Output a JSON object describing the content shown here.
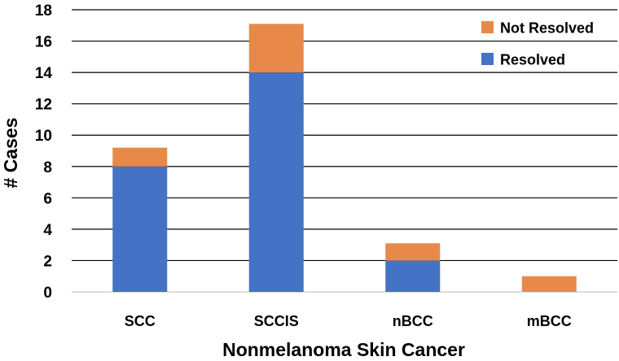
{
  "chart_data": {
    "type": "bar",
    "stacked": true,
    "title": "",
    "xlabel": "Nonmelanoma Skin Cancer",
    "ylabel": "# Cases",
    "ylim": [
      0,
      18
    ],
    "yticks": [
      0,
      2,
      4,
      6,
      8,
      10,
      12,
      14,
      16,
      18
    ],
    "grid": true,
    "legend_position": "top-right",
    "categories": [
      "SCC",
      "SCCIS",
      "nBCC",
      "mBCC"
    ],
    "series": [
      {
        "name": "Resolved",
        "color": "#4472C4",
        "values": [
          8,
          14,
          2,
          0
        ]
      },
      {
        "name": "Not Resolved",
        "color": "#E8894A",
        "values": [
          1.2,
          3.1,
          1.1,
          1.0
        ]
      }
    ],
    "legend_order": [
      "Not Resolved",
      "Resolved"
    ]
  }
}
